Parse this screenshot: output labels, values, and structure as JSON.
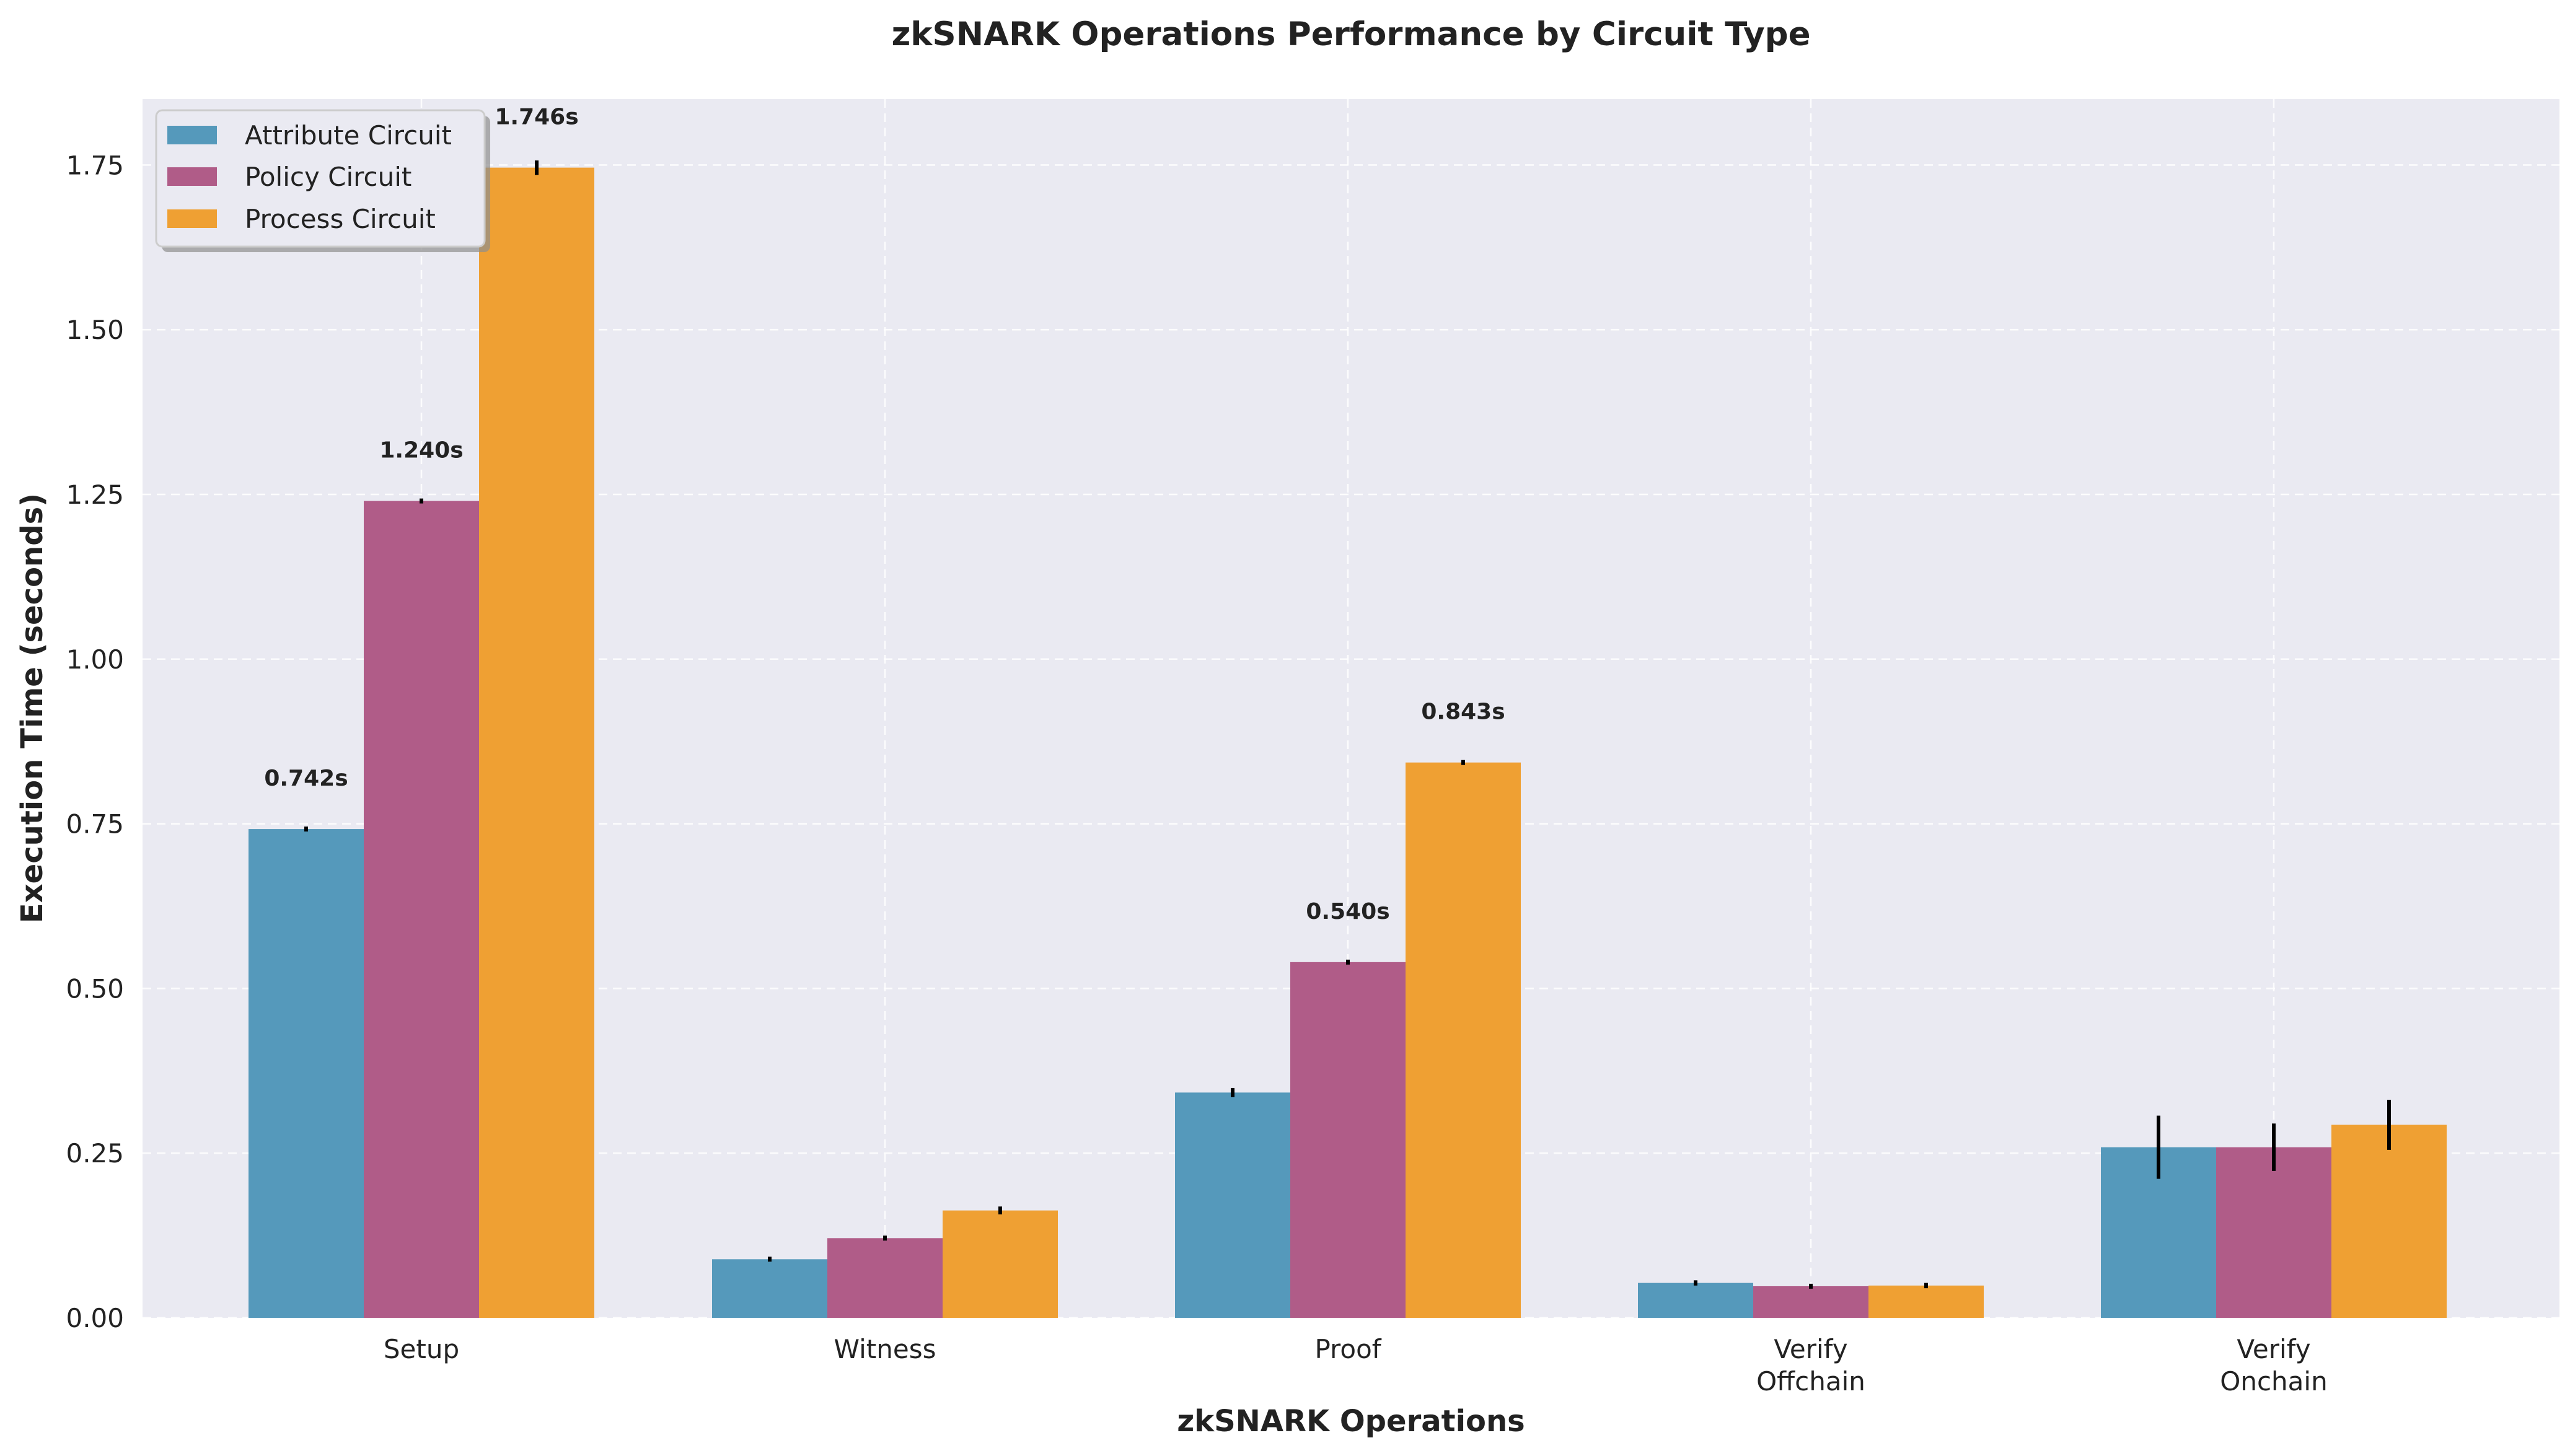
{
  "chart_data": {
    "type": "bar",
    "title": "zkSNARK Operations Performance by Circuit Type",
    "xlabel": "zkSNARK Operations",
    "ylabel": "Execution Time (seconds)",
    "ylim": [
      0,
      1.85
    ],
    "yticks": [
      "0.00",
      "0.25",
      "0.50",
      "0.75",
      "1.00",
      "1.25",
      "1.50",
      "1.75"
    ],
    "categories": [
      [
        "Setup"
      ],
      [
        "Witness"
      ],
      [
        "Proof"
      ],
      [
        "Verify",
        "Offchain"
      ],
      [
        "Verify",
        "Onchain"
      ]
    ],
    "series": [
      {
        "name": "Attribute Circuit",
        "color": "#5599BB",
        "values": [
          0.742,
          0.089,
          0.342,
          0.053,
          0.259
        ],
        "errors": [
          0.002,
          0.001,
          0.007,
          0.004,
          0.048
        ],
        "labels": [
          "0.742s",
          "",
          "",
          "",
          ""
        ]
      },
      {
        "name": "Policy Circuit",
        "color": "#B05C88",
        "values": [
          1.24,
          0.121,
          0.54,
          0.048,
          0.259
        ],
        "errors": [
          0.001,
          0.002,
          0.001,
          0.002,
          0.036
        ],
        "labels": [
          "1.240s",
          "",
          "0.540s",
          "",
          ""
        ]
      },
      {
        "name": "Process Circuit",
        "color": "#EFA033",
        "values": [
          1.746,
          0.163,
          0.843,
          0.049,
          0.293
        ],
        "errors": [
          0.011,
          0.006,
          0.002,
          0.004,
          0.038
        ],
        "labels": [
          "1.746s",
          "",
          "0.843s",
          "",
          ""
        ]
      }
    ],
    "grid": true,
    "legend": "top-left"
  },
  "colors": {
    "plot_background": "#EAEAF2",
    "error_bar": "#000000"
  }
}
